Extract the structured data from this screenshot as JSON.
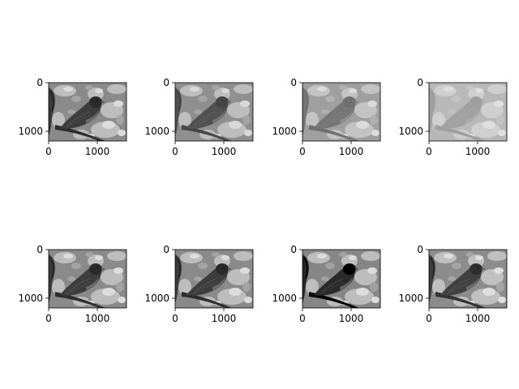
{
  "chart_data": {
    "type": "image-grid",
    "rows": 2,
    "cols": 4,
    "colormap": "gray",
    "image_extent": {
      "x": [
        0,
        1600
      ],
      "y": [
        0,
        1200
      ]
    },
    "xticks": [
      0,
      1000
    ],
    "yticks": [
      0,
      1000
    ],
    "tick_labels": {
      "x": [
        "0",
        "1000"
      ],
      "y": [
        "0",
        "1000"
      ]
    },
    "panels": [
      {
        "contrast": 1.0,
        "brightness": 1.0
      },
      {
        "contrast": 0.92,
        "brightness": 1.0
      },
      {
        "contrast": 0.75,
        "brightness": 1.05
      },
      {
        "contrast": 0.5,
        "brightness": 1.15
      },
      {
        "contrast": 1.0,
        "brightness": 1.0
      },
      {
        "contrast": 1.0,
        "brightness": 1.0
      },
      {
        "contrast": 1.05,
        "brightness": 1.0
      },
      {
        "contrast": 1.0,
        "brightness": 1.02
      }
    ]
  }
}
